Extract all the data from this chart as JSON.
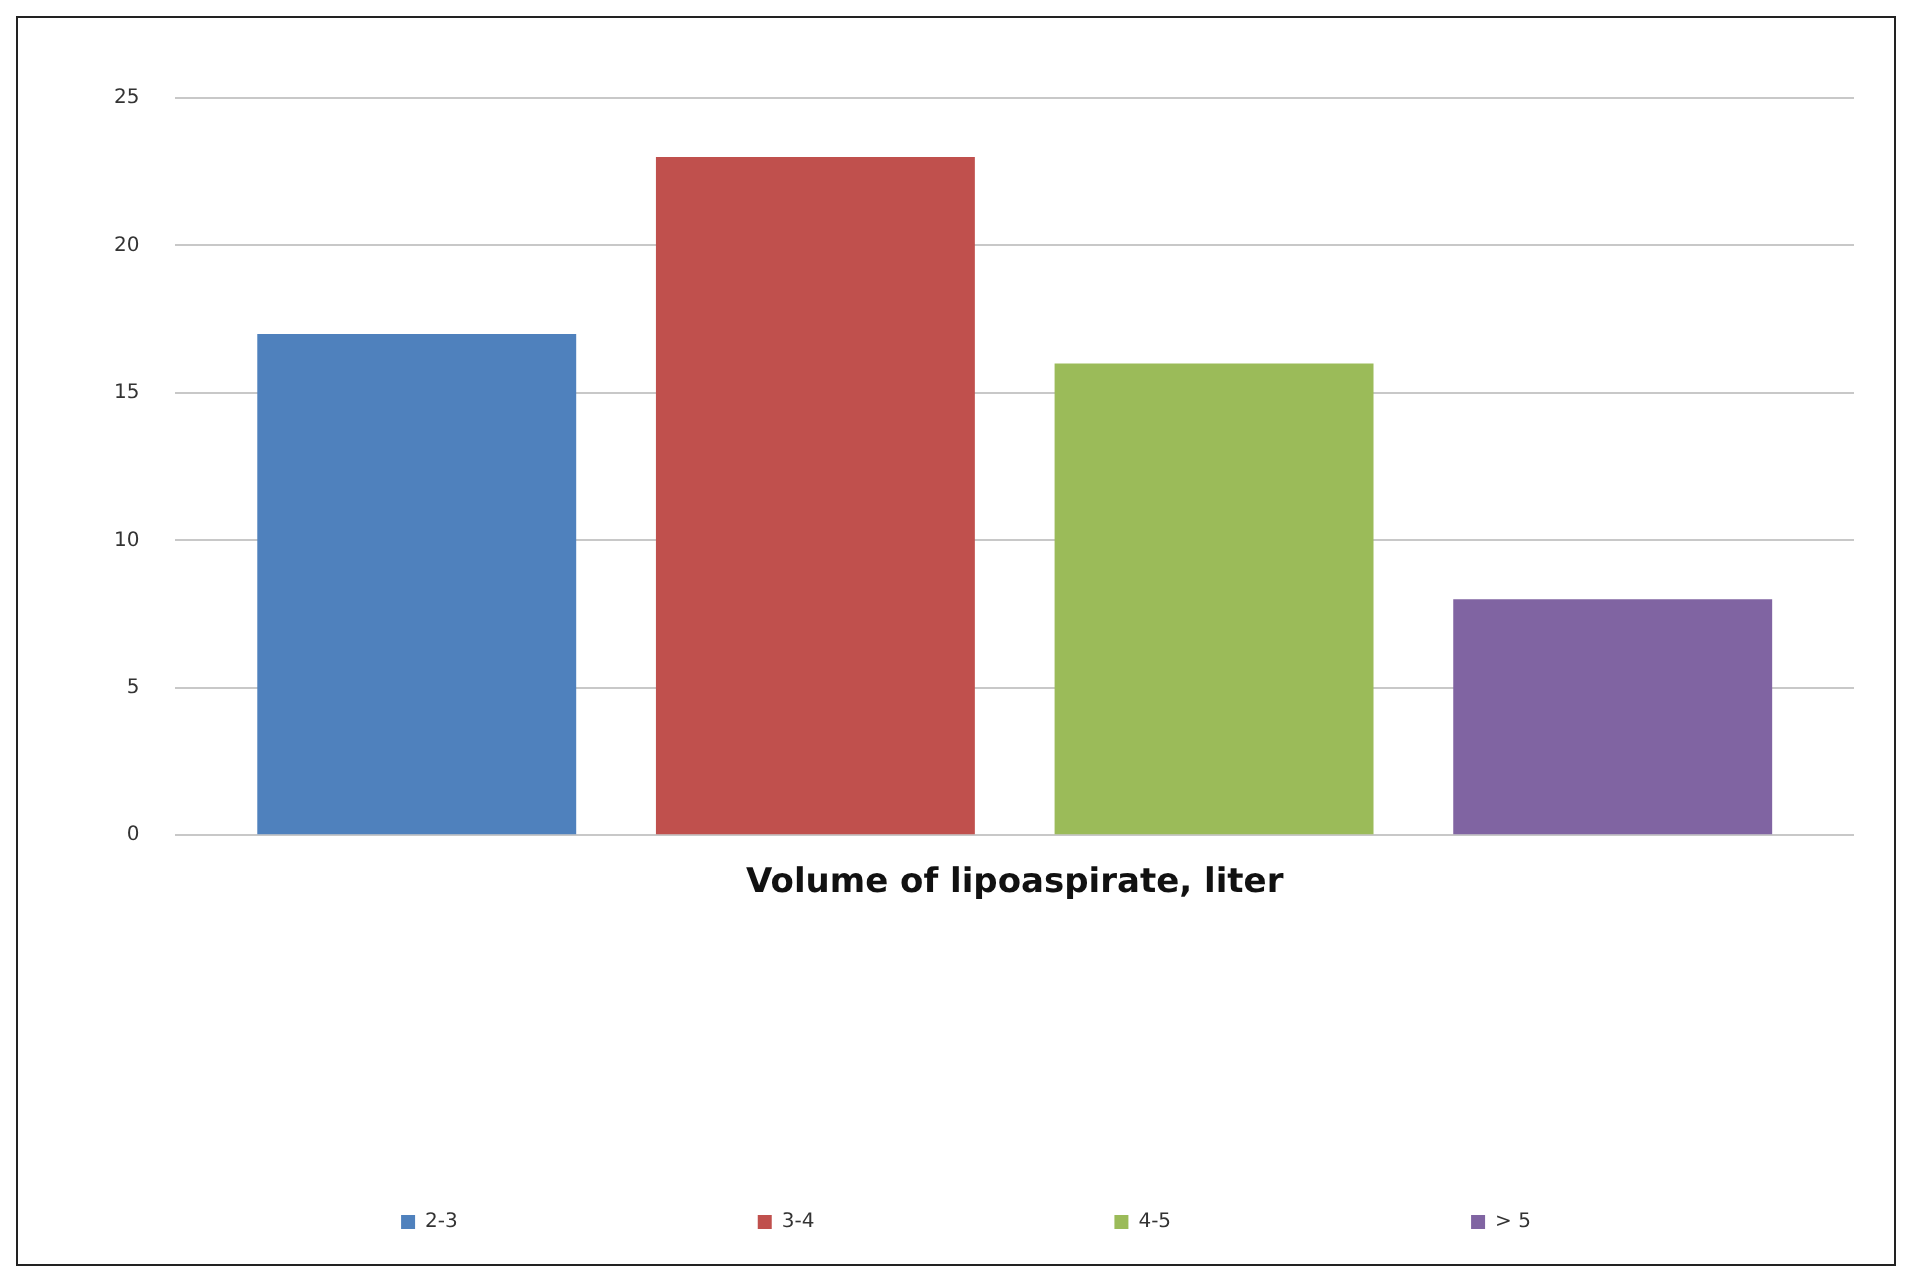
{
  "chart_data": {
    "type": "bar",
    "xlabel": "Volume of lipoaspirate, liter",
    "categories": [
      null
    ],
    "series": [
      {
        "name": "2-3",
        "color": "#4f81bd",
        "values": [
          17
        ]
      },
      {
        "name": "3-4",
        "color": "#c0504d",
        "values": [
          23
        ]
      },
      {
        "name": "4-5",
        "color": "#9bbb59",
        "values": [
          16
        ]
      },
      {
        "name": "> 5",
        "color": "#8064a2",
        "values": [
          8
        ]
      }
    ],
    "ylim": [
      0,
      25
    ],
    "yticks": [
      0,
      5,
      10,
      15,
      20,
      25
    ],
    "grid": "y",
    "legend": "bottom"
  }
}
